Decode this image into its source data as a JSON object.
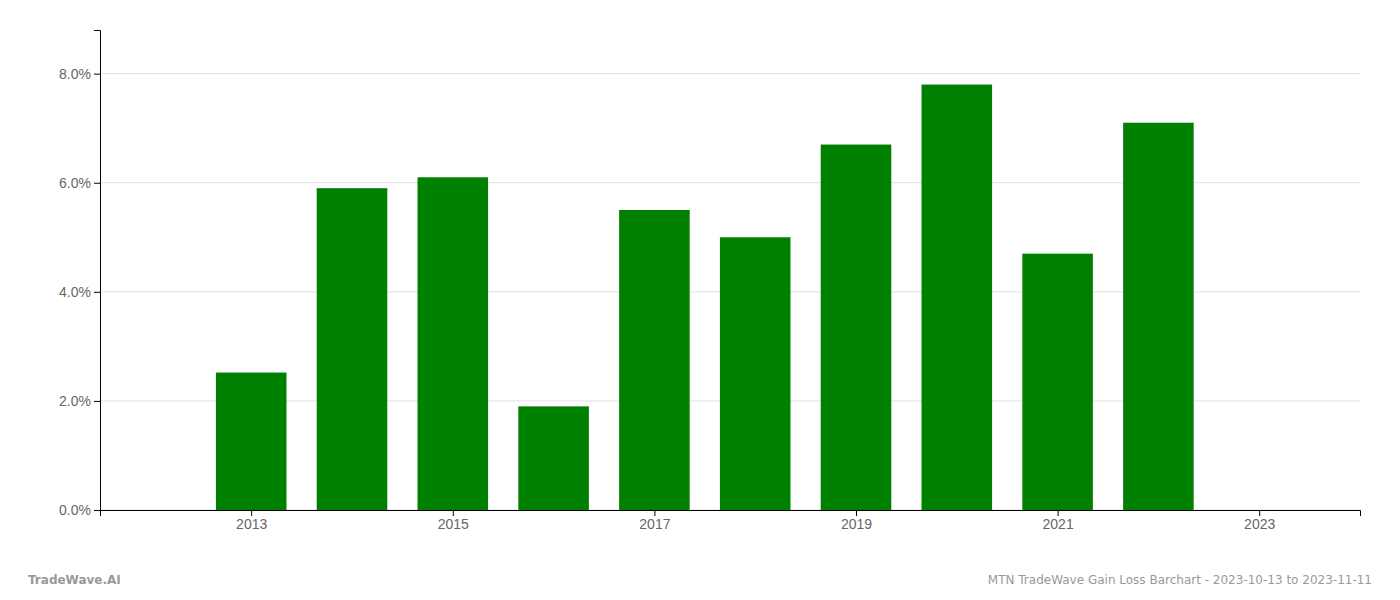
{
  "chart_data": {
    "type": "bar",
    "x": [
      2013,
      2014,
      2015,
      2016,
      2017,
      2018,
      2019,
      2020,
      2021,
      2022
    ],
    "values": [
      0.0252,
      0.059,
      0.061,
      0.019,
      0.055,
      0.05,
      0.067,
      0.078,
      0.047,
      0.071
    ],
    "color": "#008000",
    "xlim": [
      2011.5,
      2024.0
    ],
    "xticks": [
      2013,
      2015,
      2017,
      2019,
      2021,
      2023
    ],
    "ylim": [
      0,
      0.088
    ],
    "yticks": [
      {
        "value": 0.0,
        "label": "0.0%"
      },
      {
        "value": 0.02,
        "label": "2.0%"
      },
      {
        "value": 0.04,
        "label": "4.0%"
      },
      {
        "value": 0.06,
        "label": "6.0%"
      },
      {
        "value": 0.08,
        "label": "8.0%"
      }
    ],
    "grid": true,
    "annotations": [
      "TradeWave.AI",
      "MTN TradeWave Gain Loss Barchart - 2023-10-13 to 2023-11-11"
    ]
  }
}
